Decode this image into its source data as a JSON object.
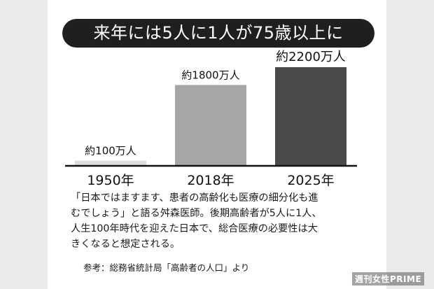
{
  "title": "来年には5人に1人が75歳以上に",
  "chart_data": {
    "type": "bar",
    "categories": [
      "1950年",
      "2018年",
      "2025年"
    ],
    "values": [
      100,
      1800,
      2200
    ],
    "data_labels": [
      "約100万人",
      "約1800万人",
      "約2200万人"
    ],
    "unit": "万人",
    "ylim": [
      0,
      2200
    ],
    "grid": false,
    "legend": "none",
    "colors": [
      "#dcdcdc",
      "#a6a6a6",
      "#4a4a4a"
    ]
  },
  "caption": {
    "lines": [
      "「日本ではますます、患者の高齢化も医療の細分化も進",
      "むでしょう」と語る舛森医師。後期高齢者が5人に1人、",
      "人生100年時代を迎えた日本で、総合医療の必要性は大",
      "きくなると想定される。"
    ]
  },
  "source": "参考：総務省統計局「高齢者の人口」より",
  "watermark": "週刊女性PRIME"
}
